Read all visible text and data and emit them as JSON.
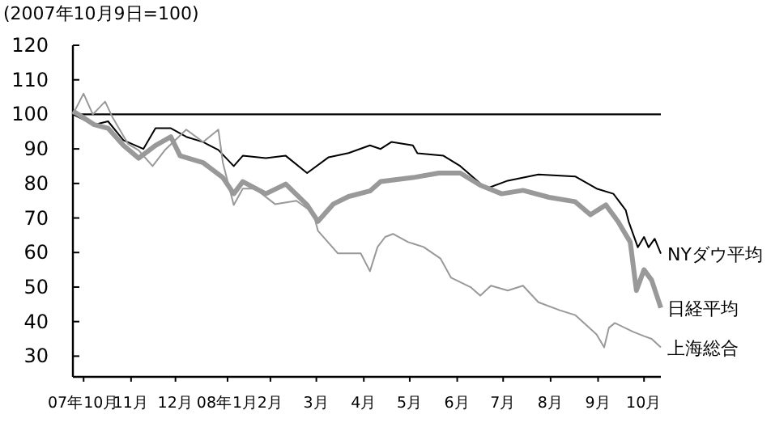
{
  "chart_data": {
    "type": "line",
    "ylabel": "(2007年10月9日=100)",
    "xlim": [
      "2007-10-09",
      "2008-10-27"
    ],
    "ylim": [
      24,
      120
    ],
    "yticks": [
      30,
      40,
      50,
      60,
      70,
      80,
      90,
      100,
      110,
      120
    ],
    "xticks": [
      {
        "value": "2007-10-16",
        "label": "07年10月"
      },
      {
        "value": "2007-11-16",
        "label": "11月"
      },
      {
        "value": "2007-12-15",
        "label": "12月"
      },
      {
        "value": "2008-01-18",
        "label": "08年1月"
      },
      {
        "value": "2008-02-15",
        "label": "2月"
      },
      {
        "value": "2008-03-16",
        "label": "3月"
      },
      {
        "value": "2008-04-16",
        "label": "4月"
      },
      {
        "value": "2008-05-16",
        "label": "5月"
      },
      {
        "value": "2008-06-16",
        "label": "6月"
      },
      {
        "value": "2008-07-16",
        "label": "7月"
      },
      {
        "value": "2008-08-16",
        "label": "8月"
      },
      {
        "value": "2008-09-16",
        "label": "9月"
      },
      {
        "value": "2008-10-16",
        "label": "10月"
      }
    ],
    "grid": false,
    "legend": false,
    "marker": "none",
    "ref_lines": [
      {
        "axis": "y",
        "value": 100,
        "color": "#000000"
      }
    ],
    "series": [
      {
        "name": "NYダウ平均",
        "color": "#000000",
        "x": [
          "2007-10-09",
          "2007-10-16",
          "2007-10-23",
          "2007-11-01",
          "2007-11-11",
          "2007-11-24",
          "2007-12-02",
          "2007-12-12",
          "2007-12-22",
          "2008-01-02",
          "2008-01-12",
          "2008-01-22",
          "2008-01-28",
          "2008-02-12",
          "2008-02-25",
          "2008-03-10",
          "2008-03-24",
          "2008-04-06",
          "2008-04-20",
          "2008-04-27",
          "2008-05-04",
          "2008-05-18",
          "2008-05-21",
          "2008-06-07",
          "2008-06-18",
          "2008-07-05",
          "2008-07-19",
          "2008-08-08",
          "2008-09-01",
          "2008-09-15",
          "2008-09-26",
          "2008-10-04",
          "2008-10-06",
          "2008-10-12",
          "2008-10-16",
          "2008-10-19",
          "2008-10-23",
          "2008-10-27"
        ],
        "values": [
          100,
          98.5,
          97,
          98,
          92.5,
          90,
          96,
          96,
          93.5,
          92,
          89.7,
          85,
          88,
          87.3,
          88,
          83,
          87.6,
          88.8,
          91,
          90,
          92,
          91,
          88.7,
          88,
          85,
          78.5,
          80.8,
          82.6,
          82,
          78.5,
          77,
          72.3,
          69,
          61.5,
          64.5,
          61.5,
          64,
          59.7
        ]
      },
      {
        "name": "日経平均",
        "color": "#999999",
        "x": [
          "2007-10-09",
          "2007-10-16",
          "2007-10-23",
          "2007-11-01",
          "2007-11-11",
          "2007-11-21",
          "2007-12-02",
          "2007-12-12",
          "2007-12-18",
          "2008-01-02",
          "2008-01-15",
          "2008-01-22",
          "2008-01-28",
          "2008-02-12",
          "2008-02-25",
          "2008-03-10",
          "2008-03-17",
          "2008-03-27",
          "2008-04-06",
          "2008-04-20",
          "2008-04-27",
          "2008-05-18",
          "2008-06-04",
          "2008-06-18",
          "2008-07-01",
          "2008-07-15",
          "2008-07-29",
          "2008-08-15",
          "2008-09-01",
          "2008-09-11",
          "2008-09-21",
          "2008-09-29",
          "2008-10-07",
          "2008-10-11",
          "2008-10-16",
          "2008-10-21",
          "2008-10-27"
        ],
        "values": [
          101,
          99,
          97,
          96,
          91,
          87.3,
          91,
          93.5,
          88,
          86,
          81.7,
          77,
          80.5,
          77,
          79.8,
          73.8,
          69,
          74,
          76.2,
          77.8,
          80.5,
          81.7,
          83,
          83,
          79.5,
          77,
          78,
          76,
          74.7,
          70.9,
          73.8,
          69,
          63,
          49,
          55,
          52,
          44
        ]
      },
      {
        "name": "上海総合",
        "color": "#999999",
        "x": [
          "2007-10-09",
          "2007-10-16",
          "2007-10-22",
          "2007-10-30",
          "2007-11-04",
          "2007-11-14",
          "2007-11-21",
          "2007-11-30",
          "2007-12-08",
          "2007-12-22",
          "2008-01-02",
          "2008-01-12",
          "2008-01-15",
          "2008-01-22",
          "2008-01-28",
          "2008-02-05",
          "2008-02-18",
          "2008-03-03",
          "2008-03-14",
          "2008-03-17",
          "2008-03-30",
          "2008-04-14",
          "2008-04-20",
          "2008-04-25",
          "2008-04-30",
          "2008-05-05",
          "2008-05-15",
          "2008-05-25",
          "2008-06-05",
          "2008-06-12",
          "2008-06-25",
          "2008-07-01",
          "2008-07-08",
          "2008-07-19",
          "2008-07-29",
          "2008-08-08",
          "2008-08-22",
          "2008-09-01",
          "2008-09-15",
          "2008-09-20",
          "2008-09-23",
          "2008-09-27",
          "2008-10-09",
          "2008-10-16",
          "2008-10-21",
          "2008-10-27"
        ],
        "values": [
          100,
          106,
          100,
          103.7,
          99,
          91.5,
          89.6,
          85,
          89.6,
          95.6,
          92,
          95.6,
          86,
          73.8,
          78.5,
          78.5,
          74,
          75,
          71.5,
          66.3,
          59.8,
          59.8,
          54.6,
          61.6,
          64.5,
          65.4,
          63,
          61.6,
          58.3,
          52.7,
          49.9,
          47.5,
          50.4,
          49,
          50.4,
          45.6,
          43.3,
          41.9,
          36.3,
          32.5,
          38.2,
          39.6,
          37,
          35.8,
          35,
          32.5
        ]
      }
    ]
  }
}
